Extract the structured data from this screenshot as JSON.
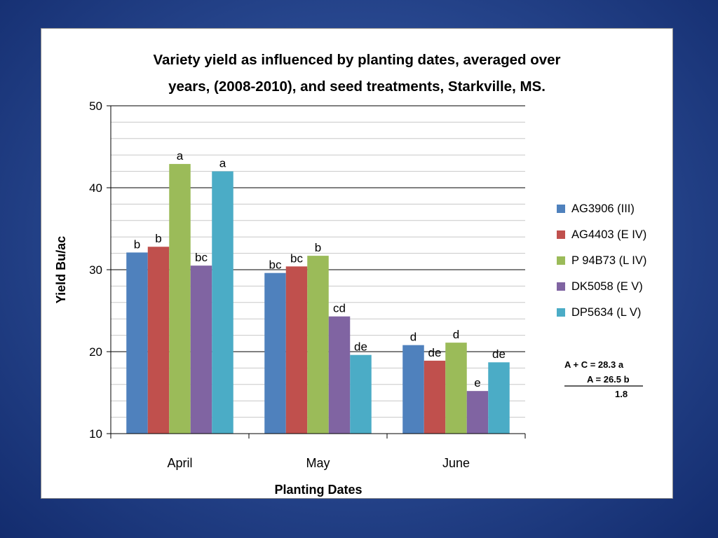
{
  "chart_data": {
    "type": "bar",
    "title_line1": "Variety yield as influenced by planting dates, averaged over",
    "title_line2": "years, (2008-2010), and seed treatments, Starkville, MS.",
    "xlabel": "Planting Dates",
    "ylabel": "Yield Bu/ac",
    "ylim": [
      10,
      50
    ],
    "yticks": [
      10,
      20,
      30,
      40,
      50
    ],
    "minor_tick_step": 2,
    "categories": [
      "April",
      "May",
      "June"
    ],
    "legend_position": "right",
    "series": [
      {
        "name": "AG3906 (III)",
        "color": "#4f81bd",
        "values": [
          32.1,
          29.6,
          20.8
        ],
        "labels": [
          "b",
          "bc",
          "d"
        ]
      },
      {
        "name": "AG4403 (E IV)",
        "color": "#c0504d",
        "values": [
          32.8,
          30.4,
          18.9
        ],
        "labels": [
          "b",
          "bc",
          "de"
        ]
      },
      {
        "name": "P 94B73  (L IV)",
        "color": "#9bbb59",
        "values": [
          42.9,
          31.7,
          21.1
        ],
        "labels": [
          "a",
          "b",
          "d"
        ]
      },
      {
        "name": "DK5058 (E V)",
        "color": "#8064a2",
        "values": [
          30.5,
          24.3,
          15.2
        ],
        "labels": [
          "bc",
          "cd",
          "e"
        ]
      },
      {
        "name": "DP5634 (L V)",
        "color": "#4bacc6",
        "values": [
          42.0,
          19.6,
          18.7
        ],
        "labels": [
          "a",
          "de",
          "de"
        ]
      }
    ],
    "annotation": {
      "line1": "A + C = 28.3 a",
      "line2": "A = 26.5 b",
      "line3": "1.8"
    }
  }
}
